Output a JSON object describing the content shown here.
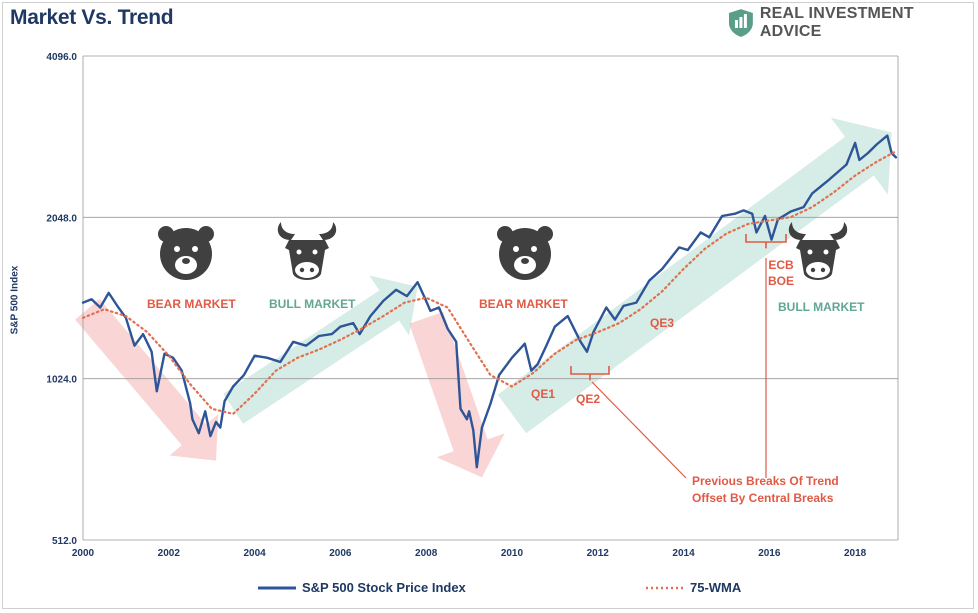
{
  "title": "Market Vs. Trend",
  "brand": {
    "name": "REAL INVESTMENT ADVICE",
    "shield_color": "#5a9e8a"
  },
  "chart_data": {
    "type": "line",
    "ylabel": "S&P 500 Index",
    "y_scale": "log2",
    "ylim": [
      512,
      4096
    ],
    "xlim": [
      2000,
      2019
    ],
    "y_ticks": [
      "4096.0",
      "2048.0",
      "1024.0",
      "512.0"
    ],
    "y_tick_values": [
      4096,
      2048,
      1024,
      512
    ],
    "x_ticks": [
      "2000",
      "2002",
      "2004",
      "2006",
      "2008",
      "2010",
      "2012",
      "2014",
      "2016",
      "2018"
    ],
    "x_tick_values": [
      2000,
      2002,
      2004,
      2006,
      2008,
      2010,
      2012,
      2014,
      2016,
      2018
    ],
    "grid": "horizontal",
    "series": [
      {
        "name": "S&P 500 Stock Price Index",
        "color": "#2e5597",
        "style": "solid",
        "points": [
          [
            2000.0,
            1420
          ],
          [
            2000.2,
            1440
          ],
          [
            2000.4,
            1390
          ],
          [
            2000.6,
            1480
          ],
          [
            2000.8,
            1400
          ],
          [
            2001.0,
            1330
          ],
          [
            2001.2,
            1180
          ],
          [
            2001.4,
            1240
          ],
          [
            2001.6,
            1150
          ],
          [
            2001.72,
            970
          ],
          [
            2001.9,
            1140
          ],
          [
            2002.1,
            1120
          ],
          [
            2002.3,
            1060
          ],
          [
            2002.5,
            920
          ],
          [
            2002.55,
            860
          ],
          [
            2002.7,
            810
          ],
          [
            2002.85,
            890
          ],
          [
            2002.97,
            800
          ],
          [
            2003.1,
            850
          ],
          [
            2003.2,
            830
          ],
          [
            2003.3,
            930
          ],
          [
            2003.5,
            990
          ],
          [
            2003.75,
            1040
          ],
          [
            2004.0,
            1130
          ],
          [
            2004.3,
            1120
          ],
          [
            2004.6,
            1100
          ],
          [
            2004.9,
            1200
          ],
          [
            2005.2,
            1180
          ],
          [
            2005.5,
            1230
          ],
          [
            2005.8,
            1240
          ],
          [
            2006.0,
            1280
          ],
          [
            2006.3,
            1300
          ],
          [
            2006.45,
            1240
          ],
          [
            2006.7,
            1340
          ],
          [
            2007.0,
            1430
          ],
          [
            2007.3,
            1500
          ],
          [
            2007.55,
            1460
          ],
          [
            2007.8,
            1550
          ],
          [
            2007.95,
            1460
          ],
          [
            2008.1,
            1370
          ],
          [
            2008.3,
            1390
          ],
          [
            2008.5,
            1270
          ],
          [
            2008.7,
            1200
          ],
          [
            2008.8,
            900
          ],
          [
            2008.95,
            860
          ],
          [
            2009.0,
            890
          ],
          [
            2009.1,
            820
          ],
          [
            2009.18,
            700
          ],
          [
            2009.3,
            830
          ],
          [
            2009.5,
            920
          ],
          [
            2009.7,
            1040
          ],
          [
            2010.0,
            1120
          ],
          [
            2010.3,
            1190
          ],
          [
            2010.45,
            1060
          ],
          [
            2010.6,
            1090
          ],
          [
            2010.8,
            1180
          ],
          [
            2011.0,
            1280
          ],
          [
            2011.3,
            1340
          ],
          [
            2011.6,
            1200
          ],
          [
            2011.75,
            1150
          ],
          [
            2011.9,
            1250
          ],
          [
            2012.2,
            1390
          ],
          [
            2012.4,
            1320
          ],
          [
            2012.6,
            1400
          ],
          [
            2012.9,
            1420
          ],
          [
            2013.2,
            1560
          ],
          [
            2013.5,
            1640
          ],
          [
            2013.9,
            1800
          ],
          [
            2014.1,
            1780
          ],
          [
            2014.4,
            1920
          ],
          [
            2014.6,
            1880
          ],
          [
            2014.9,
            2060
          ],
          [
            2015.2,
            2080
          ],
          [
            2015.4,
            2110
          ],
          [
            2015.6,
            2080
          ],
          [
            2015.7,
            1920
          ],
          [
            2015.9,
            2060
          ],
          [
            2016.05,
            1860
          ],
          [
            2016.2,
            2030
          ],
          [
            2016.5,
            2100
          ],
          [
            2016.8,
            2140
          ],
          [
            2017.0,
            2270
          ],
          [
            2017.4,
            2410
          ],
          [
            2017.8,
            2570
          ],
          [
            2018.0,
            2820
          ],
          [
            2018.1,
            2620
          ],
          [
            2018.3,
            2700
          ],
          [
            2018.5,
            2800
          ],
          [
            2018.75,
            2910
          ],
          [
            2018.85,
            2700
          ],
          [
            2018.95,
            2650
          ]
        ]
      },
      {
        "name": "75-WMA",
        "color": "#e07050",
        "style": "dotted",
        "points": [
          [
            2000.0,
            1330
          ],
          [
            2000.5,
            1380
          ],
          [
            2001.0,
            1340
          ],
          [
            2001.5,
            1250
          ],
          [
            2002.0,
            1130
          ],
          [
            2002.5,
            1000
          ],
          [
            2003.0,
            900
          ],
          [
            2003.5,
            880
          ],
          [
            2004.0,
            960
          ],
          [
            2004.5,
            1060
          ],
          [
            2005.0,
            1120
          ],
          [
            2005.5,
            1160
          ],
          [
            2006.0,
            1210
          ],
          [
            2006.5,
            1270
          ],
          [
            2007.0,
            1340
          ],
          [
            2007.5,
            1420
          ],
          [
            2008.0,
            1450
          ],
          [
            2008.5,
            1390
          ],
          [
            2009.0,
            1200
          ],
          [
            2009.5,
            1040
          ],
          [
            2010.0,
            990
          ],
          [
            2010.5,
            1050
          ],
          [
            2011.0,
            1140
          ],
          [
            2011.5,
            1210
          ],
          [
            2012.0,
            1250
          ],
          [
            2012.5,
            1300
          ],
          [
            2013.0,
            1380
          ],
          [
            2013.5,
            1490
          ],
          [
            2014.0,
            1640
          ],
          [
            2014.5,
            1790
          ],
          [
            2015.0,
            1910
          ],
          [
            2015.5,
            1990
          ],
          [
            2016.0,
            2020
          ],
          [
            2016.5,
            2050
          ],
          [
            2017.0,
            2140
          ],
          [
            2017.5,
            2280
          ],
          [
            2018.0,
            2450
          ],
          [
            2018.5,
            2600
          ],
          [
            2018.95,
            2720
          ]
        ]
      }
    ],
    "annotations": [
      {
        "id": "bear-1",
        "text": "BEAR MARKET",
        "color": "#e05a45"
      },
      {
        "id": "bull-1",
        "text": "BULL MARKET",
        "color": "#62a694"
      },
      {
        "id": "bear-2",
        "text": "BEAR MARKET",
        "color": "#e05a45"
      },
      {
        "id": "bull-2",
        "text": "BULL MARKET",
        "color": "#62a694"
      },
      {
        "id": "qe1",
        "text": "QE1",
        "color": "#e05a45"
      },
      {
        "id": "qe2",
        "text": "QE2",
        "color": "#e05a45"
      },
      {
        "id": "qe3",
        "text": "QE3",
        "color": "#e05a45"
      },
      {
        "id": "ecb",
        "text": "ECB",
        "color": "#e05a45"
      },
      {
        "id": "boe",
        "text": "BOE",
        "color": "#e05a45"
      },
      {
        "id": "breaks-1",
        "text": "Previous Breaks Of Trend",
        "color": "#e05a45"
      },
      {
        "id": "breaks-2",
        "text": "Offset By Central Breaks",
        "color": "#e05a45"
      }
    ],
    "legend": {
      "placement": "bottom"
    }
  }
}
